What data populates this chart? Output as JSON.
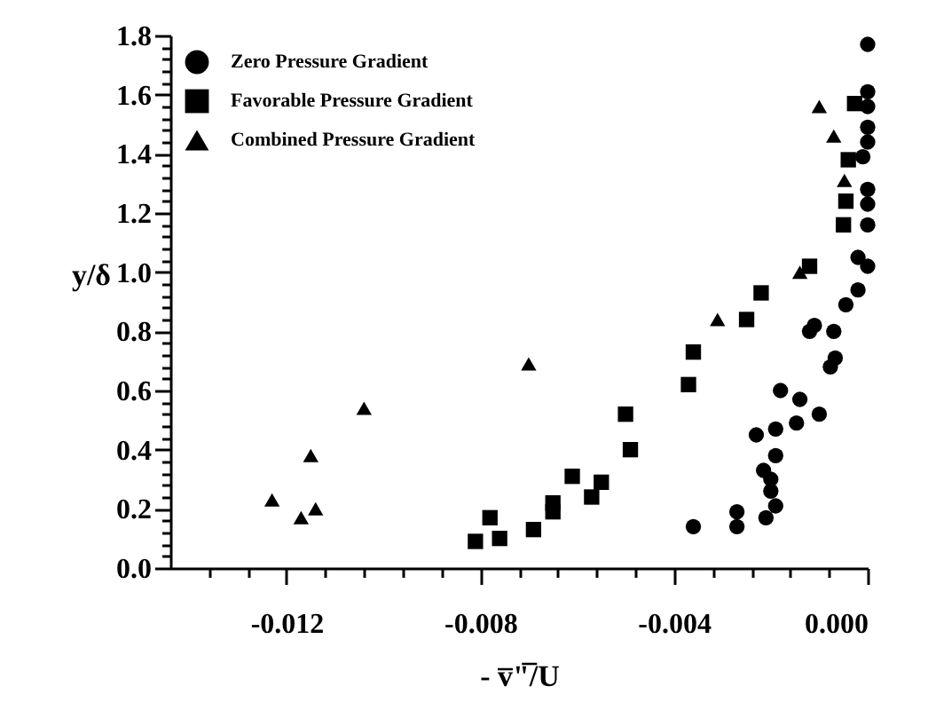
{
  "chart_data": {
    "type": "scatter",
    "xlabel": "- v̅\"̅/U",
    "ylabel": "y/δ",
    "xlim": [
      -0.0144,
      0
    ],
    "ylim": [
      0,
      1.8
    ],
    "xticks": [
      {
        "value": -0.0136,
        "label": null
      },
      {
        "value": -0.0128,
        "label": null
      },
      -0.012,
      {
        "value": -0.0112,
        "label": null
      },
      {
        "value": -0.0104,
        "label": null
      },
      {
        "value": -0.0096,
        "label": null
      },
      {
        "value": -0.0088,
        "label": null
      },
      -0.008,
      {
        "value": -0.0072,
        "label": null
      },
      {
        "value": -0.0064,
        "label": null
      },
      {
        "value": -0.0056,
        "label": null
      },
      {
        "value": -0.0048,
        "label": null
      },
      -0.004,
      {
        "value": -0.0032,
        "label": null
      },
      {
        "value": -0.0024,
        "label": null
      },
      {
        "value": -0.0016,
        "label": null
      },
      {
        "value": -0.0008,
        "label": null
      },
      {
        "value": 0,
        "label": "0.000"
      }
    ],
    "yticks": [
      {
        "value": 0,
        "label": "0.0"
      },
      {
        "value": 0.04,
        "label": null
      },
      {
        "value": 0.08,
        "label": null
      },
      {
        "value": 0.12,
        "label": null
      },
      {
        "value": 0.16,
        "label": null
      },
      0.2,
      {
        "value": 0.24,
        "label": null
      },
      {
        "value": 0.28,
        "label": null
      },
      {
        "value": 0.32,
        "label": null
      },
      {
        "value": 0.36,
        "label": null
      },
      0.4,
      {
        "value": 0.44,
        "label": null
      },
      {
        "value": 0.48,
        "label": null
      },
      {
        "value": 0.52,
        "label": null
      },
      {
        "value": 0.56,
        "label": null
      },
      0.6,
      {
        "value": 0.64,
        "label": null
      },
      {
        "value": 0.68,
        "label": null
      },
      {
        "value": 0.72,
        "label": null
      },
      {
        "value": 0.76,
        "label": null
      },
      0.8,
      {
        "value": 0.84,
        "label": null
      },
      {
        "value": 0.88,
        "label": null
      },
      {
        "value": 0.92,
        "label": null
      },
      {
        "value": 0.96,
        "label": null
      },
      {
        "value": 1,
        "label": "1.0"
      },
      {
        "value": 1.04,
        "label": null
      },
      {
        "value": 1.08,
        "label": null
      },
      {
        "value": 1.12,
        "label": null
      },
      {
        "value": 1.16,
        "label": null
      },
      1.2,
      {
        "value": 1.24,
        "label": null
      },
      {
        "value": 1.28,
        "label": null
      },
      {
        "value": 1.32,
        "label": null
      },
      {
        "value": 1.36,
        "label": null
      },
      1.4,
      {
        "value": 1.44,
        "label": null
      },
      {
        "value": 1.48,
        "label": null
      },
      {
        "value": 1.52,
        "label": null
      },
      {
        "value": 1.56,
        "label": null
      },
      1.6,
      {
        "value": 1.64,
        "label": null
      },
      {
        "value": 1.68,
        "label": null
      },
      {
        "value": 1.72,
        "label": null
      },
      {
        "value": 1.76,
        "label": null
      },
      1.8
    ],
    "grid": false,
    "legend": "top left",
    "series": [
      {
        "name": "Zero Pressure Gradient",
        "color": "#000000",
        "marker": "circle",
        "x": [
          0,
          0,
          0,
          0,
          0,
          -0.0001,
          0,
          0,
          0,
          -0.0002,
          0,
          -0.0002,
          -0.00045,
          -0.0011,
          -0.0012,
          -0.0007,
          -0.00067,
          -0.00077,
          -0.0018,
          -0.0014,
          -0.001,
          -0.00147,
          -0.0019,
          -0.0023,
          -0.0019,
          -0.00215,
          -0.002,
          -0.002,
          -0.0019,
          -0.0021,
          -0.0027,
          -0.0027,
          -0.0036
        ],
        "values": [
          1.77,
          1.61,
          1.56,
          1.49,
          1.44,
          1.39,
          1.28,
          1.23,
          1.16,
          1.05,
          1.02,
          0.94,
          0.89,
          0.82,
          0.8,
          0.8,
          0.71,
          0.68,
          0.6,
          0.57,
          0.52,
          0.49,
          0.47,
          0.45,
          0.38,
          0.33,
          0.3,
          0.26,
          0.21,
          0.17,
          0.19,
          0.14,
          0.14
        ]
      },
      {
        "name": "Favorable Pressure Gradient",
        "color": "#000000",
        "marker": "square",
        "x": [
          -0.00027,
          -0.0004,
          -0.00045,
          -0.0005,
          -0.0012,
          -0.0022,
          -0.0025,
          -0.0036,
          -0.0037,
          -0.005,
          -0.0049,
          -0.0061,
          -0.0055,
          -0.0057,
          -0.0065,
          -0.0065,
          -0.0069,
          -0.0078,
          -0.0081,
          -0.0076
        ],
        "values": [
          1.57,
          1.38,
          1.24,
          1.16,
          1.02,
          0.93,
          0.84,
          0.73,
          0.62,
          0.52,
          0.4,
          0.31,
          0.29,
          0.24,
          0.22,
          0.19,
          0.13,
          0.17,
          0.09,
          0.1
        ]
      },
      {
        "name": "Combined Pressure Gradient",
        "color": "#000000",
        "marker": "triangle",
        "x": [
          -0.001,
          -0.0007,
          -0.00048,
          -0.0014,
          -0.0031,
          -0.007,
          -0.0104,
          -0.0115,
          -0.0123,
          -0.0117,
          -0.0114
        ],
        "values": [
          1.56,
          1.46,
          1.31,
          1.0,
          0.84,
          0.69,
          0.54,
          0.38,
          0.23,
          0.17,
          0.2
        ]
      }
    ]
  }
}
